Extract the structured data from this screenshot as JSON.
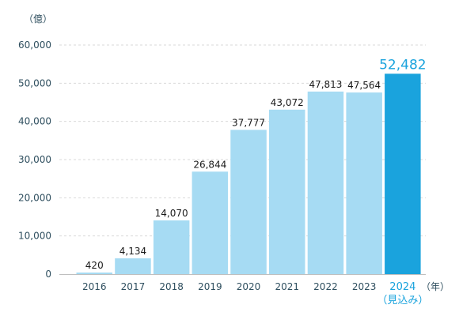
{
  "chart_data": {
    "type": "bar",
    "y_unit_label": "（億）",
    "x_unit_label": "（年）",
    "categories": [
      "2016",
      "2017",
      "2018",
      "2019",
      "2020",
      "2021",
      "2022",
      "2023",
      "2024"
    ],
    "highlight_index": 8,
    "highlight_sublabel": "（見込み）",
    "values": [
      420,
      4134,
      14070,
      26844,
      37777,
      43072,
      47813,
      47564,
      52482
    ],
    "value_labels": [
      "420",
      "4,134",
      "14,070",
      "26,844",
      "37,777",
      "43,072",
      "47,813",
      "47,564",
      "52,482"
    ],
    "ylim": [
      0,
      60000
    ],
    "yticks": [
      0,
      10000,
      20000,
      30000,
      40000,
      50000,
      60000
    ],
    "ytick_labels": [
      "0",
      "10,000",
      "20,000",
      "30,000",
      "40,000",
      "50,000",
      "60,000"
    ],
    "grid": true,
    "colors": {
      "bar": "#a6dbf3",
      "highlight": "#1aa3dd",
      "grid": "#d9d9d9",
      "axis": "#bfbfbf"
    }
  }
}
